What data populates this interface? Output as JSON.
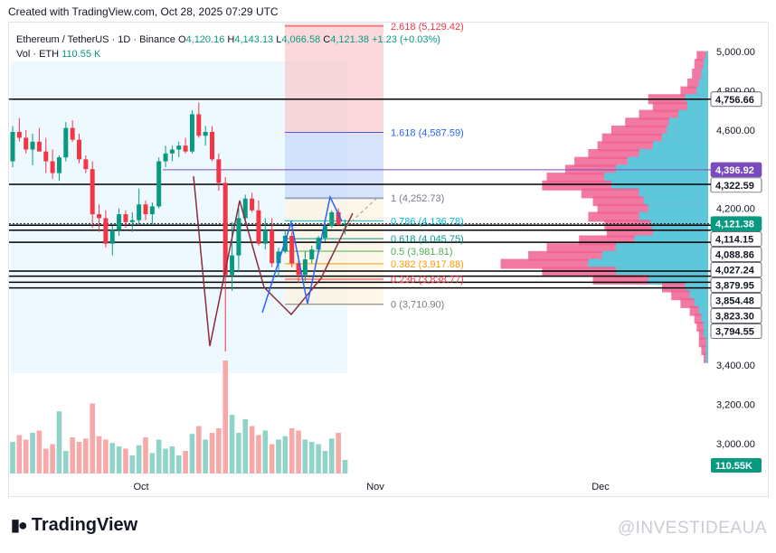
{
  "header": {
    "created_text": "Created with TradingView.com, Oct 28, 2025 07:29 UTC"
  },
  "legend": {
    "symbol": "Ethereum / TetherUS · 1D · Binance",
    "open_label": "O",
    "open": "4,120.16",
    "high_label": "H",
    "high": "4,143.13",
    "low_label": "L",
    "low": "4,066.58",
    "close_label": "C",
    "close": "4,121.38",
    "change": "+1.23 (+0.03%)",
    "vol_label": "Vol · ETH",
    "vol": "110.55 K"
  },
  "branding": {
    "logo_text": "TradingView",
    "watermark": "@INVESTIDEAUA"
  },
  "colors": {
    "up": "#089981",
    "down": "#f23645",
    "up_vol": "#8fd3c9",
    "down_vol": "#f7a9a9",
    "fib_blue": "#2962ff",
    "price_tag": "#131722",
    "fib_tag": "#7b4bbd",
    "profile_up": "#4dd0e1",
    "profile_down": "#f06292"
  },
  "chart_data": {
    "type": "candlestick",
    "price_axis": {
      "ticks": [
        "5,000.00",
        "4,800.00",
        "4,600.00",
        "4,200.00",
        "3,400.00",
        "3,200.00",
        "3,000.00"
      ],
      "tick_values": [
        5000,
        4800,
        4600,
        4200,
        3400,
        3200,
        3000
      ],
      "ylim": [
        2870,
        5150
      ]
    },
    "time_axis": {
      "labels": [
        "Oct",
        "Nov",
        "Dec"
      ]
    },
    "price_tags": [
      {
        "text": "4,756.66",
        "value": 4756.66,
        "style": "dark"
      },
      {
        "text": "4,396.92",
        "value": 4396.92,
        "style": "purple"
      },
      {
        "text": "4,322.59",
        "value": 4322.59,
        "style": "dark"
      },
      {
        "text": "4,121.38",
        "value": 4121.38,
        "style": "green"
      },
      {
        "text": "4,114.15",
        "value": 4114.15,
        "style": "dark"
      },
      {
        "text": "4,088.86",
        "value": 4088.86,
        "style": "dark"
      },
      {
        "text": "4,027.24",
        "value": 4027.24,
        "style": "dark"
      },
      {
        "text": "3,879.95",
        "value": 3879.95,
        "style": "dark"
      },
      {
        "text": "3,854.48",
        "value": 3854.48,
        "style": "dark"
      },
      {
        "text": "3,823.30",
        "value": 3823.3,
        "style": "dark"
      },
      {
        "text": "3,794.55",
        "value": 3794.55,
        "style": "dark"
      }
    ],
    "volume_tag": "110.55K",
    "horizontal_levels": [
      4756.66,
      4322.59,
      4114.15,
      4088.86,
      4027.24,
      3879.95,
      3854.48,
      3823.3,
      3794.55
    ],
    "fib_levels": [
      {
        "label": "2.618 (5,129.42)",
        "value": 5129.42,
        "color": "#f23645"
      },
      {
        "label": "1.618 (4,587.59)",
        "value": 4587.59,
        "color": "#2962ff"
      },
      {
        "label": "1 (4,252.73)",
        "value": 4252.73,
        "color": "#787b86"
      },
      {
        "label": "0.786 (4,136.78)",
        "value": 4136.78,
        "color": "#00bcd4"
      },
      {
        "label": "0.618 (4,045.75)",
        "value": 4045.75,
        "color": "#089981"
      },
      {
        "label": "0.5 (3,981.81)",
        "value": 3981.81,
        "color": "#4caf50"
      },
      {
        "label": "0.382 (3,917.88)",
        "value": 3917.88,
        "color": "#ff9800"
      },
      {
        "label": "0.236 (3,838.77)",
        "value": 3838.77,
        "color": "#f23645"
      },
      {
        "label": "0 (3,710.90)",
        "value": 3710.9,
        "color": "#787b86"
      }
    ],
    "candles": [
      [
        4440,
        4620,
        4410,
        4590
      ],
      [
        4590,
        4660,
        4540,
        4560
      ],
      [
        4560,
        4600,
        4480,
        4500
      ],
      [
        4500,
        4580,
        4420,
        4540
      ],
      [
        4540,
        4610,
        4500,
        4490
      ],
      [
        4490,
        4560,
        4380,
        4440
      ],
      [
        4440,
        4500,
        4350,
        4380
      ],
      [
        4380,
        4470,
        4340,
        4460
      ],
      [
        4460,
        4640,
        4440,
        4610
      ],
      [
        4610,
        4650,
        4540,
        4550
      ],
      [
        4550,
        4580,
        4430,
        4450
      ],
      [
        4450,
        4470,
        4380,
        4400
      ],
      [
        4400,
        4440,
        4100,
        4170
      ],
      [
        4170,
        4220,
        4080,
        4150
      ],
      [
        4150,
        4190,
        4000,
        4020
      ],
      [
        4020,
        4110,
        3960,
        4090
      ],
      [
        4090,
        4200,
        4060,
        4170
      ],
      [
        4170,
        4190,
        4100,
        4130
      ],
      [
        4130,
        4180,
        4080,
        4140
      ],
      [
        4140,
        4300,
        4120,
        4220
      ],
      [
        4220,
        4240,
        4140,
        4170
      ],
      [
        4170,
        4230,
        4120,
        4210
      ],
      [
        4210,
        4460,
        4200,
        4440
      ],
      [
        4440,
        4520,
        4410,
        4480
      ],
      [
        4480,
        4520,
        4440,
        4500
      ],
      [
        4500,
        4540,
        4460,
        4520
      ],
      [
        4520,
        4560,
        4480,
        4490
      ],
      [
        4490,
        4700,
        4480,
        4680
      ],
      [
        4680,
        4740,
        4560,
        4570
      ],
      [
        4570,
        4620,
        4520,
        4590
      ],
      [
        4590,
        4620,
        4440,
        4450
      ],
      [
        4450,
        4480,
        4290,
        4330
      ],
      [
        4330,
        4360,
        3470,
        3860
      ],
      [
        3860,
        4130,
        3780,
        3960
      ],
      [
        3960,
        4200,
        3880,
        4150
      ],
      [
        4150,
        4270,
        4120,
        4250
      ],
      [
        4250,
        4280,
        4180,
        4190
      ],
      [
        4190,
        4240,
        4010,
        4020
      ],
      [
        4020,
        4150,
        3990,
        4090
      ],
      [
        4090,
        4150,
        3900,
        3920
      ],
      [
        3920,
        4000,
        3850,
        3980
      ],
      [
        3980,
        4090,
        3970,
        4060
      ],
      [
        4060,
        4080,
        3900,
        3920
      ],
      [
        3920,
        3960,
        3820,
        3860
      ],
      [
        3860,
        3980,
        3830,
        3940
      ],
      [
        3940,
        4010,
        3920,
        3990
      ],
      [
        3990,
        4060,
        3970,
        4050
      ],
      [
        4050,
        4120,
        4030,
        4110
      ],
      [
        4110,
        4190,
        4100,
        4180
      ],
      [
        4180,
        4200,
        4110,
        4120
      ],
      [
        4120,
        4143.13,
        4066.58,
        4121.38
      ]
    ],
    "volumes": [
      0.28,
      0.34,
      0.3,
      0.36,
      0.38,
      0.22,
      0.26,
      0.55,
      0.2,
      0.32,
      0.28,
      0.31,
      0.62,
      0.33,
      0.3,
      0.27,
      0.24,
      0.22,
      0.16,
      0.25,
      0.32,
      0.18,
      0.3,
      0.22,
      0.24,
      0.16,
      0.2,
      0.35,
      0.42,
      0.3,
      0.36,
      0.4,
      1.0,
      0.52,
      0.36,
      0.48,
      0.42,
      0.34,
      0.38,
      0.26,
      0.3,
      0.33,
      0.4,
      0.38,
      0.3,
      0.28,
      0.26,
      0.2,
      0.31,
      0.36,
      0.12
    ],
    "volume_profile": [
      [
        4970,
        0.05,
        0.01
      ],
      [
        4930,
        0.06,
        0.02
      ],
      [
        4880,
        0.07,
        0.03
      ],
      [
        4830,
        0.09,
        0.04
      ],
      [
        4790,
        0.12,
        0.05
      ],
      [
        4750,
        0.26,
        0.1
      ],
      [
        4710,
        0.24,
        0.09
      ],
      [
        4670,
        0.3,
        0.13
      ],
      [
        4630,
        0.36,
        0.17
      ],
      [
        4590,
        0.42,
        0.18
      ],
      [
        4550,
        0.46,
        0.2
      ],
      [
        4510,
        0.48,
        0.24
      ],
      [
        4470,
        0.52,
        0.3
      ],
      [
        4430,
        0.58,
        0.35
      ],
      [
        4390,
        0.62,
        0.4
      ],
      [
        4350,
        0.7,
        0.45
      ],
      [
        4310,
        0.72,
        0.42
      ],
      [
        4270,
        0.55,
        0.3
      ],
      [
        4230,
        0.5,
        0.28
      ],
      [
        4190,
        0.48,
        0.26
      ],
      [
        4150,
        0.52,
        0.3
      ],
      [
        4110,
        0.45,
        0.25
      ],
      [
        4070,
        0.44,
        0.24
      ],
      [
        4030,
        0.56,
        0.32
      ],
      [
        3990,
        0.7,
        0.4
      ],
      [
        3950,
        0.78,
        0.46
      ],
      [
        3910,
        0.9,
        0.52
      ],
      [
        3870,
        0.72,
        0.4
      ],
      [
        3830,
        0.5,
        0.26
      ],
      [
        3790,
        0.2,
        0.1
      ],
      [
        3750,
        0.16,
        0.08
      ],
      [
        3710,
        0.12,
        0.06
      ],
      [
        3670,
        0.08,
        0.04
      ],
      [
        3630,
        0.06,
        0.03
      ],
      [
        3590,
        0.05,
        0.02
      ],
      [
        3550,
        0.04,
        0.02
      ],
      [
        3510,
        0.04,
        0.01
      ],
      [
        3470,
        0.03,
        0.01
      ],
      [
        3430,
        0.02,
        0.01
      ]
    ]
  }
}
